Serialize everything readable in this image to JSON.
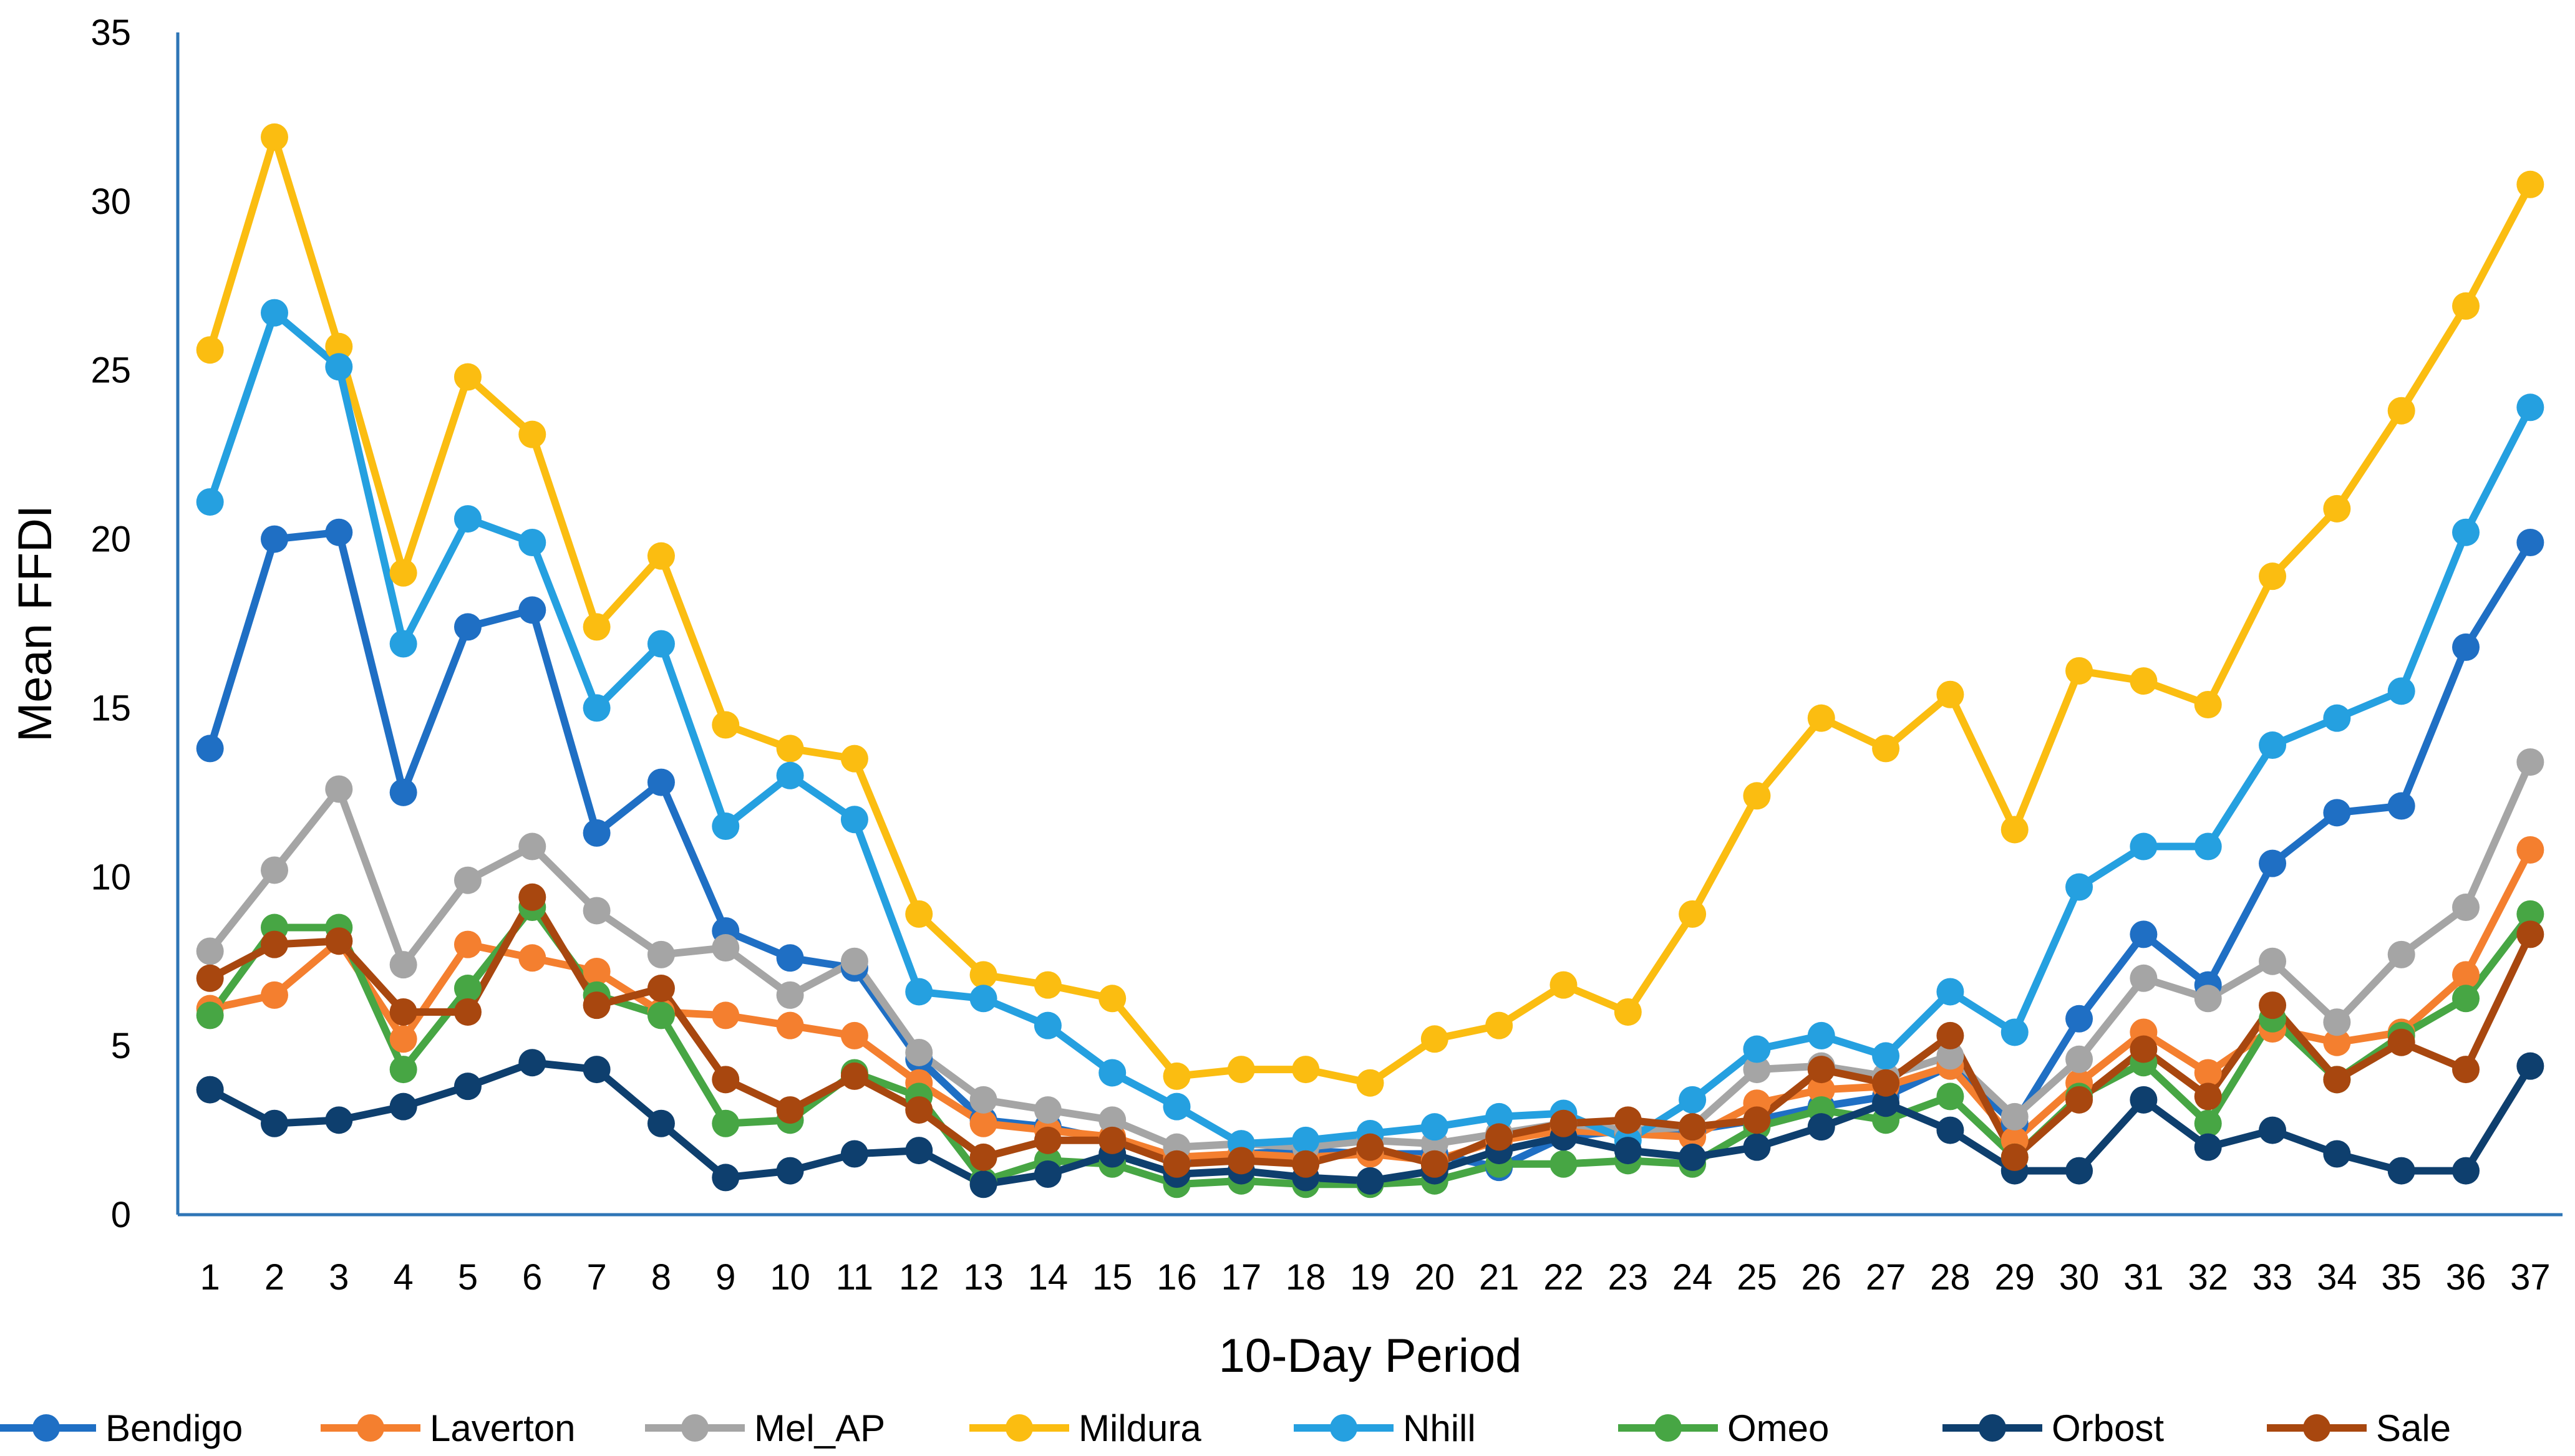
{
  "chart_data": {
    "type": "line",
    "title": "",
    "xlabel": "10-Day Period",
    "ylabel": "Mean FFDI",
    "ylim": [
      0,
      35
    ],
    "yticks": [
      0,
      5,
      10,
      15,
      20,
      25,
      30,
      35
    ],
    "grid": false,
    "legend_position": "bottom",
    "x": [
      "1",
      "2",
      "3",
      "4",
      "5",
      "6",
      "7",
      "8",
      "9",
      "10",
      "11",
      "12",
      "13",
      "14",
      "15",
      "16",
      "17",
      "18",
      "19",
      "20",
      "21",
      "22",
      "23",
      "24",
      "25",
      "26",
      "27",
      "28",
      "29",
      "30",
      "31",
      "32",
      "33",
      "34",
      "35",
      "36",
      "37"
    ],
    "series": [
      {
        "name": "Bendigo",
        "color": "#1f6fc4",
        "values": [
          13.8,
          20.0,
          20.2,
          12.5,
          17.4,
          17.9,
          11.3,
          12.8,
          8.4,
          7.6,
          7.3,
          4.6,
          2.8,
          2.6,
          2.2,
          1.6,
          1.8,
          1.9,
          1.8,
          1.8,
          1.4,
          2.3,
          2.5,
          2.5,
          2.8,
          3.2,
          3.5,
          4.4,
          2.7,
          5.8,
          8.3,
          6.8,
          10.4,
          11.9,
          12.1,
          16.8,
          19.9
        ]
      },
      {
        "name": "Laverton",
        "color": "#f47f2f",
        "values": [
          6.1,
          6.5,
          8.1,
          5.2,
          8.0,
          7.6,
          7.2,
          6.0,
          5.9,
          5.6,
          5.3,
          3.9,
          2.7,
          2.5,
          2.3,
          1.7,
          1.8,
          1.7,
          1.8,
          1.6,
          2.2,
          2.5,
          2.4,
          2.3,
          3.3,
          3.7,
          3.8,
          4.4,
          2.2,
          3.9,
          5.4,
          4.2,
          5.5,
          5.1,
          5.4,
          7.1,
          10.8
        ]
      },
      {
        "name": "Mel_AP",
        "color": "#a5a5a5",
        "values": [
          7.8,
          10.2,
          12.6,
          7.4,
          9.9,
          10.9,
          9.0,
          7.7,
          7.9,
          6.5,
          7.5,
          4.8,
          3.4,
          3.1,
          2.8,
          2.0,
          2.1,
          2.0,
          2.2,
          2.1,
          2.4,
          2.7,
          2.5,
          2.6,
          4.3,
          4.4,
          4.1,
          4.7,
          2.9,
          4.6,
          7.0,
          6.4,
          7.5,
          5.7,
          7.7,
          9.1,
          13.4
        ]
      },
      {
        "name": "Mildura",
        "color": "#fbbd11",
        "values": [
          25.6,
          31.9,
          25.7,
          19.0,
          24.8,
          23.1,
          17.4,
          19.5,
          14.5,
          13.8,
          13.5,
          8.9,
          7.1,
          6.8,
          6.4,
          4.1,
          4.3,
          4.3,
          3.9,
          5.2,
          5.6,
          6.8,
          6.0,
          8.9,
          12.4,
          14.7,
          13.8,
          15.4,
          11.4,
          16.1,
          15.8,
          15.1,
          18.9,
          20.9,
          23.8,
          26.9,
          30.5
        ]
      },
      {
        "name": "Nhill",
        "color": "#25a0e0",
        "values": [
          21.1,
          26.7,
          25.1,
          16.9,
          20.6,
          19.9,
          15.0,
          16.9,
          11.5,
          13.0,
          11.7,
          6.6,
          6.4,
          5.6,
          4.2,
          3.2,
          2.1,
          2.2,
          2.4,
          2.6,
          2.9,
          3.0,
          2.2,
          3.4,
          4.9,
          5.3,
          4.7,
          6.6,
          5.4,
          9.7,
          10.9,
          10.9,
          13.9,
          14.7,
          15.5,
          20.2,
          23.9
        ]
      },
      {
        "name": "Omeo",
        "color": "#47a644",
        "values": [
          5.9,
          8.5,
          8.5,
          4.3,
          6.7,
          9.1,
          6.5,
          5.9,
          2.7,
          2.8,
          4.2,
          3.5,
          1.0,
          1.6,
          1.5,
          0.9,
          1.0,
          0.9,
          0.9,
          1.0,
          1.5,
          1.5,
          1.6,
          1.5,
          2.6,
          3.1,
          2.8,
          3.5,
          1.7,
          3.5,
          4.5,
          2.7,
          5.8,
          4.0,
          5.3,
          6.4,
          8.9
        ]
      },
      {
        "name": "Orbost",
        "color": "#0e3f6e",
        "values": [
          3.7,
          2.7,
          2.8,
          3.2,
          3.8,
          4.5,
          4.3,
          2.7,
          1.1,
          1.3,
          1.8,
          1.9,
          0.9,
          1.2,
          1.8,
          1.2,
          1.3,
          1.1,
          1.0,
          1.3,
          1.9,
          2.3,
          1.9,
          1.7,
          2.0,
          2.6,
          3.3,
          2.5,
          1.3,
          1.3,
          3.4,
          2.0,
          2.5,
          1.8,
          1.3,
          1.3,
          4.4
        ]
      },
      {
        "name": "Sale",
        "color": "#a8470f",
        "values": [
          7.0,
          8.0,
          8.1,
          6.0,
          6.0,
          9.4,
          6.2,
          6.7,
          4.0,
          3.1,
          4.1,
          3.1,
          1.7,
          2.2,
          2.2,
          1.5,
          1.6,
          1.5,
          2.0,
          1.5,
          2.3,
          2.7,
          2.8,
          2.6,
          2.8,
          4.3,
          3.9,
          5.3,
          1.7,
          3.4,
          4.9,
          3.5,
          6.2,
          4.0,
          5.1,
          4.3,
          8.3
        ]
      }
    ]
  }
}
